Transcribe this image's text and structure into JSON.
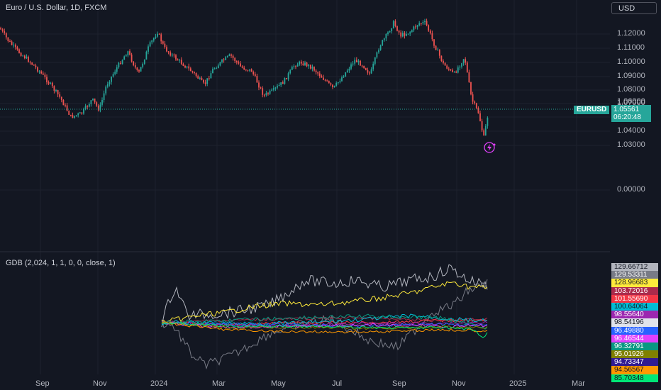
{
  "header": {
    "symbol_title": "Euro / U.S. Dollar, 1D, FXCM",
    "currency_button": "USD"
  },
  "price_axis": {
    "ticks": [
      "1.12000",
      "1.11000",
      "1.10000",
      "1.09000",
      "1.08000",
      "1.07000",
      "1.06000",
      "1.04000",
      "1.03000",
      "0.00000"
    ]
  },
  "last_price": {
    "symbol": "EURUSD",
    "price": "1.05561",
    "countdown": "06:20:48"
  },
  "indicator": {
    "title": "GDB (2,024, 1, 1, 0, 0, close, 1)",
    "labels": [
      {
        "value": "129.66712",
        "bg": "#b2b5be",
        "fg": "#131722"
      },
      {
        "value": "129.53311",
        "bg": "#787b86",
        "fg": "#ffffff"
      },
      {
        "value": "128.96683",
        "bg": "#ffeb3b",
        "fg": "#131722"
      },
      {
        "value": "103.72016",
        "bg": "#ab2a4b",
        "fg": "#ffffff"
      },
      {
        "value": "101.55690",
        "bg": "#f23645",
        "fg": "#ffffff"
      },
      {
        "value": "100.64064",
        "bg": "#00bcd4",
        "fg": "#131722"
      },
      {
        "value": "98.55640",
        "bg": "#9c27b0",
        "fg": "#ffffff"
      },
      {
        "value": "98.54196",
        "bg": "#e0e3eb",
        "fg": "#131722"
      },
      {
        "value": "96.49880",
        "bg": "#2962ff",
        "fg": "#ffffff"
      },
      {
        "value": "96.46544",
        "bg": "#e040fb",
        "fg": "#ffffff"
      },
      {
        "value": "96.32791",
        "bg": "#089981",
        "fg": "#ffffff"
      },
      {
        "value": "95.01926",
        "bg": "#808000",
        "fg": "#ffffff"
      },
      {
        "value": "94.73347",
        "bg": "#311b92",
        "fg": "#ffffff"
      },
      {
        "value": "94.56567",
        "bg": "#ff9800",
        "fg": "#131722"
      },
      {
        "value": "85.70348",
        "bg": "#00e676",
        "fg": "#131722"
      }
    ]
  },
  "time_axis": {
    "ticks": [
      "Sep",
      "Nov",
      "2024",
      "Mar",
      "May",
      "Jul",
      "Sep",
      "Nov",
      "2025",
      "Mar"
    ]
  }
}
